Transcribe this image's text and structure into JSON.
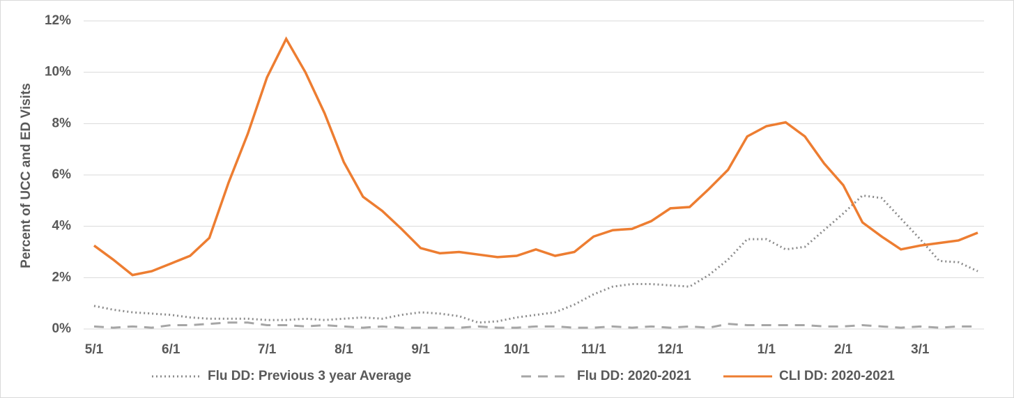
{
  "chart_data": {
    "type": "line",
    "y_label": "Percent of UCC and ED Visits",
    "categories": [
      "5/1",
      null,
      null,
      null,
      "6/1",
      null,
      null,
      null,
      null,
      "7/1",
      null,
      null,
      null,
      "8/1",
      null,
      null,
      null,
      "9/1",
      null,
      null,
      null,
      null,
      "10/1",
      null,
      null,
      null,
      "11/1",
      null,
      null,
      null,
      "12/1",
      null,
      null,
      null,
      null,
      "1/1",
      null,
      null,
      null,
      "2/1",
      null,
      null,
      null,
      "3/1",
      null,
      null,
      null
    ],
    "ylim": [
      0,
      12
    ],
    "yticks": [
      {
        "value": 0,
        "label": "0%"
      },
      {
        "value": 2,
        "label": "2%"
      },
      {
        "value": 4,
        "label": "4%"
      },
      {
        "value": 6,
        "label": "6%"
      },
      {
        "value": 8,
        "label": "8%"
      },
      {
        "value": 10,
        "label": "10%"
      },
      {
        "value": 12,
        "label": "12%"
      }
    ],
    "grid": true,
    "legend": "bottom",
    "series": [
      {
        "name": "Flu DD: Previous 3 year Average",
        "color": "#8c8c8c",
        "dash": "dotted",
        "values": [
          0.9,
          0.75,
          0.65,
          0.6,
          0.55,
          0.45,
          0.4,
          0.4,
          0.4,
          0.35,
          0.35,
          0.4,
          0.35,
          0.4,
          0.45,
          0.4,
          0.55,
          0.65,
          0.6,
          0.5,
          0.25,
          0.3,
          0.45,
          0.55,
          0.65,
          0.95,
          1.35,
          1.65,
          1.75,
          1.75,
          1.7,
          1.65,
          2.1,
          2.7,
          3.5,
          3.5,
          3.1,
          3.2,
          3.85,
          4.5,
          5.2,
          5.1,
          4.3,
          3.5,
          2.65,
          2.6,
          2.25
        ]
      },
      {
        "name": "Flu DD: 2020-2021",
        "color": "#a6a6a6",
        "dash": "dashed",
        "values": [
          0.1,
          0.05,
          0.1,
          0.05,
          0.15,
          0.15,
          0.2,
          0.25,
          0.25,
          0.15,
          0.15,
          0.1,
          0.15,
          0.1,
          0.05,
          0.1,
          0.05,
          0.05,
          0.05,
          0.05,
          0.1,
          0.05,
          0.05,
          0.1,
          0.1,
          0.05,
          0.05,
          0.1,
          0.05,
          0.1,
          0.05,
          0.1,
          0.05,
          0.2,
          0.15,
          0.15,
          0.15,
          0.15,
          0.1,
          0.1,
          0.15,
          0.1,
          0.05,
          0.1,
          0.05,
          0.1,
          0.1
        ]
      },
      {
        "name": "CLI DD: 2020-2021",
        "color": "#ed7d31",
        "dash": "solid",
        "values": [
          3.25,
          2.7,
          2.1,
          2.25,
          2.55,
          2.85,
          3.55,
          5.7,
          7.6,
          9.8,
          11.3,
          10.0,
          8.4,
          6.5,
          5.15,
          4.6,
          3.9,
          3.15,
          2.95,
          3.0,
          2.9,
          2.8,
          2.85,
          3.1,
          2.85,
          3.0,
          3.6,
          3.85,
          3.9,
          4.2,
          4.7,
          4.75,
          5.45,
          6.2,
          7.5,
          7.9,
          8.05,
          7.5,
          6.45,
          5.6,
          4.15,
          3.6,
          3.1,
          3.25,
          3.35,
          3.45,
          3.75
        ]
      }
    ]
  }
}
